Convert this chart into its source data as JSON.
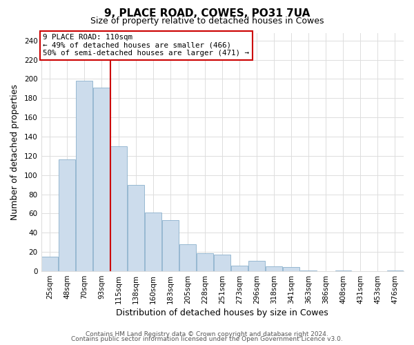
{
  "title": "9, PLACE ROAD, COWES, PO31 7UA",
  "subtitle": "Size of property relative to detached houses in Cowes",
  "xlabel": "Distribution of detached houses by size in Cowes",
  "ylabel": "Number of detached properties",
  "bar_color": "#ccdcec",
  "bar_edge_color": "#8ab0cc",
  "categories": [
    "25sqm",
    "48sqm",
    "70sqm",
    "93sqm",
    "115sqm",
    "138sqm",
    "160sqm",
    "183sqm",
    "205sqm",
    "228sqm",
    "251sqm",
    "273sqm",
    "296sqm",
    "318sqm",
    "341sqm",
    "363sqm",
    "386sqm",
    "408sqm",
    "431sqm",
    "453sqm",
    "476sqm"
  ],
  "values": [
    15,
    116,
    198,
    191,
    130,
    90,
    61,
    53,
    28,
    19,
    17,
    6,
    11,
    5,
    4,
    1,
    0,
    1,
    0,
    0,
    1
  ],
  "vline_index": 4,
  "vline_color": "#cc0000",
  "ann_line1": "9 PLACE ROAD: 110sqm",
  "ann_line2": "← 49% of detached houses are smaller (466)",
  "ann_line3": "50% of semi-detached houses are larger (471) →",
  "annotation_box_color": "#ffffff",
  "annotation_box_edge": "#cc0000",
  "ylim": [
    0,
    248
  ],
  "yticks": [
    0,
    20,
    40,
    60,
    80,
    100,
    120,
    140,
    160,
    180,
    200,
    220,
    240
  ],
  "footer1": "Contains HM Land Registry data © Crown copyright and database right 2024.",
  "footer2": "Contains public sector information licensed under the Open Government Licence v3.0.",
  "background_color": "#ffffff",
  "grid_color": "#dddddd",
  "title_fontsize": 11,
  "subtitle_fontsize": 9,
  "axis_label_fontsize": 9,
  "tick_fontsize": 7.5,
  "footer_fontsize": 6.5
}
